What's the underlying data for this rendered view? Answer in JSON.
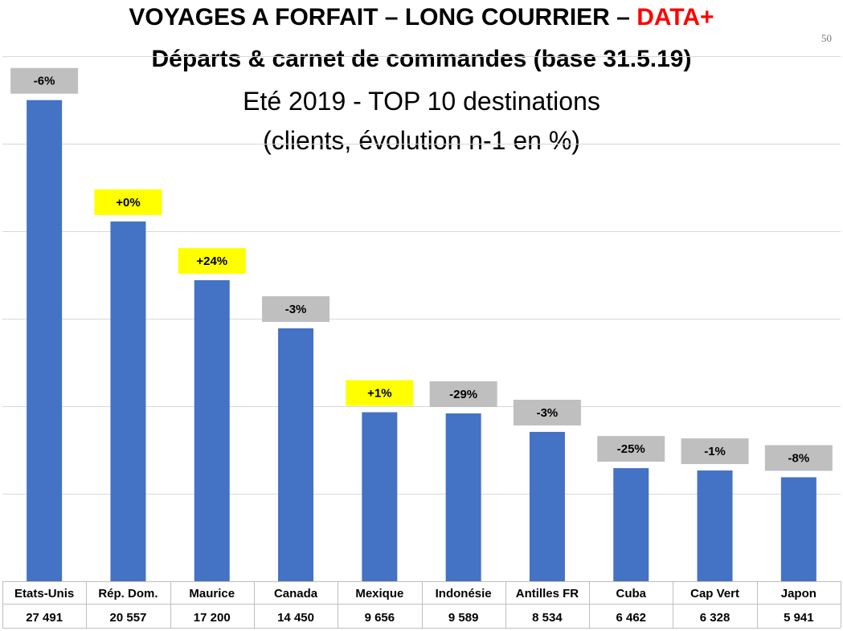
{
  "title": {
    "line1": "VOYAGES A FORFAIT – LONG COURRIER – ",
    "line1_accent": "DATA+",
    "line2": "Départs & carnet de commandes (base 31.5.19)",
    "line3": "Eté 2019 - TOP 10 destinations",
    "line4": "(clients, évolution n-1 en %)"
  },
  "page_number": "50",
  "colors": {
    "bar": "#4472c4",
    "accent": "#ff0000",
    "label_negative": "#bfbfbf",
    "label_positive": "#ffff00"
  },
  "chart_data": {
    "type": "bar",
    "categories": [
      "Etats-Unis",
      "Rép. Dom.",
      "Maurice",
      "Canada",
      "Mexique",
      "Indonésie",
      "Antilles FR",
      "Cuba",
      "Cap Vert",
      "Japon"
    ],
    "values": [
      27491,
      20557,
      17200,
      14450,
      9656,
      9589,
      8534,
      6462,
      6328,
      5941
    ],
    "value_labels": [
      "27 491",
      "20 557",
      "17 200",
      "14 450",
      "9 656",
      "9 589",
      "8 534",
      "6 462",
      "6 328",
      "5 941"
    ],
    "evolution_labels": [
      "-6%",
      "+0%",
      "+24%",
      "-3%",
      "+1%",
      "-29%",
      "-3%",
      "-25%",
      "-1%",
      "-8%"
    ],
    "evolution_positive": [
      false,
      true,
      true,
      false,
      true,
      false,
      false,
      false,
      false,
      false
    ],
    "ylim": [
      0,
      30000
    ],
    "grid": true,
    "xlabel": "",
    "ylabel": ""
  }
}
